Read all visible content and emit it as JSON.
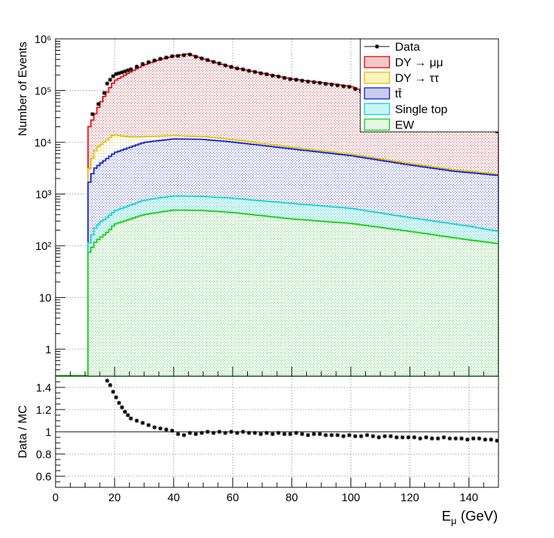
{
  "chart_data": [
    {
      "type": "stacked-histogram",
      "xlim": [
        0,
        150
      ],
      "ylim_log": [
        0.3,
        1000000
      ],
      "y_scale": "log",
      "grid": true,
      "legend_position": "top-right",
      "ylabel": "Number of Events",
      "y_ticks": [
        "1",
        "10",
        "10²",
        "10³",
        "10⁴",
        "10⁵",
        "10⁶"
      ],
      "bins": {
        "start": 11.0,
        "width": 1.0,
        "count": 139
      },
      "stack_order": [
        "EW",
        "Single top",
        "tt̄",
        "DY → ττ",
        "DY → μμ"
      ],
      "series": [
        {
          "name": "DY → μμ",
          "color": "#e8141a",
          "fill": "#f2c9c9",
          "pattern": "dots",
          "knots": [
            [
              11,
              15000
            ],
            [
              13,
              25000
            ],
            [
              16,
              60000
            ],
            [
              20,
              140000
            ],
            [
              25,
              210000
            ],
            [
              30,
              300000
            ],
            [
              35,
              380000
            ],
            [
              40,
              450000
            ],
            [
              45,
              500000
            ],
            [
              50,
              400000
            ],
            [
              60,
              270000
            ],
            [
              80,
              160000
            ],
            [
              100,
              115000
            ],
            [
              120,
              40000
            ],
            [
              130,
              25000
            ],
            [
              150,
              15000
            ]
          ]
        },
        {
          "name": "DY → ττ",
          "color": "#e6c21a",
          "fill": "#fff3bf",
          "knots": [
            [
              11,
              1000
            ],
            [
              12,
              2000
            ],
            [
              14,
              4500
            ],
            [
              20,
              8000
            ],
            [
              30,
              3000
            ],
            [
              40,
              2000
            ],
            [
              60,
              1200
            ],
            [
              80,
              600
            ],
            [
              100,
              400
            ],
            [
              150,
              150
            ]
          ]
        },
        {
          "name": "tt̄",
          "color": "#1a2bd6",
          "fill": "#c8cdef",
          "pattern": "dots",
          "knots": [
            [
              11,
              1300
            ],
            [
              13,
              2800
            ],
            [
              15,
              3500
            ],
            [
              20,
              5800
            ],
            [
              30,
              9200
            ],
            [
              40,
              10700
            ],
            [
              50,
              10500
            ],
            [
              60,
              9300
            ],
            [
              80,
              6800
            ],
            [
              100,
              5000
            ],
            [
              120,
              3300
            ],
            [
              135,
              2500
            ],
            [
              150,
              2100
            ]
          ]
        },
        {
          "name": "Single top",
          "color": "#1ad6d6",
          "fill": "#c9f5f5",
          "knots": [
            [
              11,
              30
            ],
            [
              13,
              90
            ],
            [
              15,
              140
            ],
            [
              20,
              210
            ],
            [
              30,
              360
            ],
            [
              40,
              430
            ],
            [
              50,
              420
            ],
            [
              60,
              390
            ],
            [
              80,
              330
            ],
            [
              100,
              260
            ],
            [
              120,
              160
            ],
            [
              140,
              110
            ],
            [
              150,
              80
            ]
          ]
        },
        {
          "name": "EW",
          "color": "#1ad61a",
          "fill": "#e6f7e6",
          "pattern": "dots",
          "knots": [
            [
              11,
              70
            ],
            [
              12,
              80
            ],
            [
              13,
              110
            ],
            [
              15,
              140
            ],
            [
              18,
              190
            ],
            [
              20,
              260
            ],
            [
              30,
              400
            ],
            [
              40,
              490
            ],
            [
              50,
              480
            ],
            [
              60,
              440
            ],
            [
              80,
              330
            ],
            [
              100,
              270
            ],
            [
              120,
              190
            ],
            [
              140,
              130
            ],
            [
              150,
              110
            ]
          ]
        },
        {
          "name": "Data",
          "color": "#000000",
          "marker": "star",
          "points_from": "ratio"
        }
      ]
    },
    {
      "type": "scatter",
      "ylabel": "Data / MC",
      "xlabel": "E_μ (GeV)",
      "xlabel_main": "E",
      "xlabel_sub": "μ",
      "xlabel_unit": "(GeV)",
      "xlim": [
        0,
        150
      ],
      "ylim": [
        0.5,
        1.5
      ],
      "y_ticks": [
        "0.6",
        "0.8",
        "1",
        "1.2",
        "1.4"
      ],
      "x_ticks": [
        "0",
        "20",
        "40",
        "60",
        "80",
        "100",
        "120",
        "140"
      ],
      "reference_line": 1.0,
      "x": [
        17.5,
        18.5,
        19.5,
        20.5,
        21.5,
        22.5,
        23.5,
        24.5,
        25.5,
        27.5,
        29.5,
        31.5,
        33.5,
        35.5,
        37.5,
        39.5,
        41.5,
        43.5,
        45.5,
        47.5,
        49.5,
        51.5,
        53.5,
        55.5,
        57.5,
        59.5,
        61.5,
        63.5,
        65.5,
        67.5,
        69.5,
        71.5,
        73.5,
        75.5,
        77.5,
        79.5,
        81.5,
        83.5,
        85.5,
        87.5,
        89.5,
        91.5,
        93.5,
        95.5,
        97.5,
        99.5,
        101.5,
        103.5,
        105.5,
        107.5,
        109.5,
        111.5,
        113.5,
        115.5,
        117.5,
        119.5,
        121.5,
        123.5,
        125.5,
        127.5,
        129.5,
        131.5,
        133.5,
        135.5,
        137.5,
        139.5,
        141.5,
        143.5,
        145.5,
        147.5,
        149.5
      ],
      "y": [
        1.46,
        1.42,
        1.36,
        1.31,
        1.26,
        1.22,
        1.18,
        1.15,
        1.12,
        1.1,
        1.08,
        1.06,
        1.04,
        1.03,
        1.02,
        1.01,
        0.98,
        0.97,
        0.99,
        0.98,
        0.99,
        1.0,
        0.99,
        1.0,
        0.99,
        1.0,
        0.99,
        1.0,
        0.99,
        0.99,
        0.98,
        0.99,
        0.98,
        0.99,
        0.98,
        0.98,
        0.99,
        0.98,
        0.97,
        0.98,
        0.98,
        0.97,
        0.97,
        0.97,
        0.96,
        0.97,
        0.96,
        0.96,
        0.97,
        0.96,
        0.95,
        0.96,
        0.96,
        0.95,
        0.95,
        0.95,
        0.95,
        0.94,
        0.95,
        0.94,
        0.94,
        0.95,
        0.94,
        0.94,
        0.94,
        0.93,
        0.94,
        0.94,
        0.93,
        0.93,
        0.92
      ]
    }
  ],
  "legend": [
    {
      "label": "Data",
      "kind": "marker",
      "color": "#000000"
    },
    {
      "label": "DY → μμ",
      "kind": "box",
      "color": "#e8141a",
      "fill": "#f2c9c9"
    },
    {
      "label": "DY → ττ",
      "kind": "box",
      "color": "#e6c21a",
      "fill": "#fff3bf"
    },
    {
      "label": "tt̄",
      "kind": "box",
      "color": "#1a2bd6",
      "fill": "#c8cdef"
    },
    {
      "label": "Single top",
      "kind": "box",
      "color": "#1ad6d6",
      "fill": "#c9f5f5"
    },
    {
      "label": "EW",
      "kind": "box",
      "color": "#1ad61a",
      "fill": "#e6f7e6"
    }
  ]
}
